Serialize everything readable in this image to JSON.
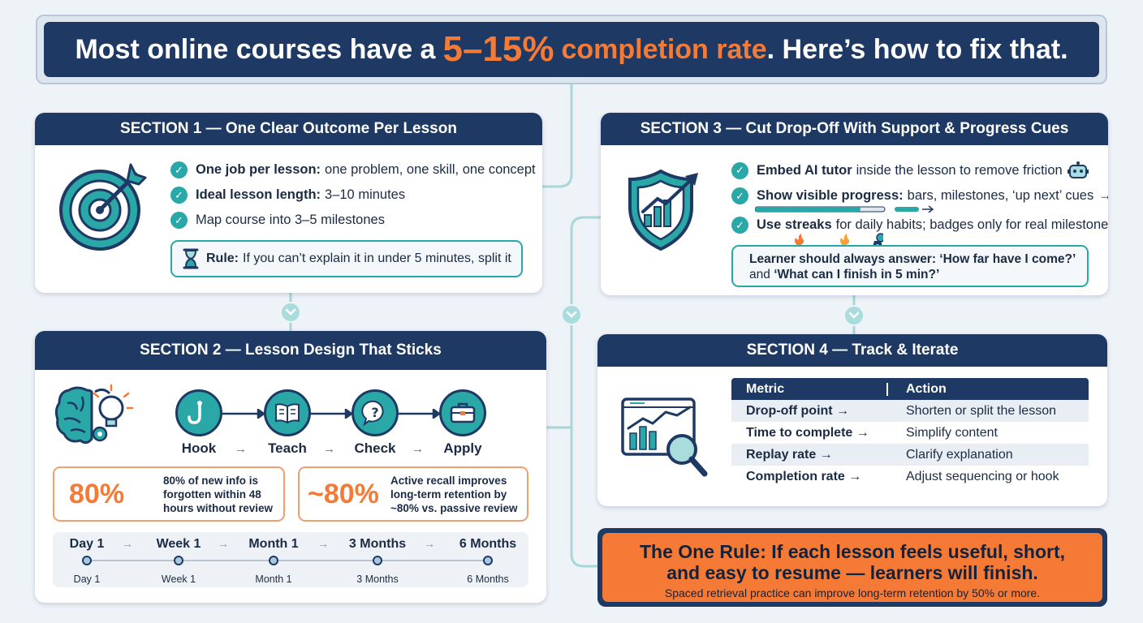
{
  "header": {
    "prefix": "Most online courses have a",
    "highlight_number": "5–15%",
    "highlight_text": "completion rate",
    "suffix": ". Here’s how to fix that."
  },
  "section1": {
    "title": "SECTION 1 — One Clear Outcome Per Lesson",
    "items": [
      {
        "bold": "One job per lesson:",
        "text": "one problem, one skill, one concept"
      },
      {
        "bold": "Ideal lesson length:",
        "text": "3–10 minutes"
      },
      {
        "bold": "",
        "text": "Map course into 3–5 milestones"
      }
    ],
    "rule_bold": "Rule:",
    "rule_text": "If you can’t explain it in under 5 minutes, split it"
  },
  "section2": {
    "title": "SECTION 2 — Lesson Design That Sticks",
    "flow": [
      "Hook",
      "Teach",
      "Check",
      "Apply"
    ],
    "stats": [
      {
        "value": "80%",
        "lines": [
          "80% of new info is",
          "forgotten within 48",
          "hours without review"
        ]
      },
      {
        "value": "~80%",
        "lines": [
          "Active recall improves",
          "long-term retention by",
          "~80% vs. passive review"
        ]
      }
    ],
    "timeline": [
      "Day 1",
      "Week 1",
      "Month 1",
      "3 Months",
      "6 Months"
    ]
  },
  "section3": {
    "title": "SECTION 3 — Cut Drop-Off With Support & Progress Cues",
    "items": [
      {
        "bold": "Embed AI tutor",
        "text": "inside the lesson to remove friction"
      },
      {
        "bold": "Show visible progress:",
        "text": "bars, milestones, ‘up next’ cues"
      },
      {
        "bold": "Use streaks",
        "text": "for daily habits; badges only for real milestones"
      }
    ],
    "callout_line1": "Learner should always answer: ‘How far have I come?’",
    "callout_and": "and",
    "callout_line2": "‘What can I finish in 5 min?’"
  },
  "section4": {
    "title": "SECTION 4 — Track & Iterate",
    "col_metric": "Metric",
    "col_action": "Action",
    "rows": [
      {
        "metric": "Drop-off point →",
        "action": "Shorten or split the lesson"
      },
      {
        "metric": "Time to complete →",
        "action": "Simplify content"
      },
      {
        "metric": "Replay rate →",
        "action": "Clarify explanation"
      },
      {
        "metric": "Completion rate →",
        "action": "Adjust sequencing or hook"
      }
    ]
  },
  "one_rule": {
    "line1": "The One Rule: If each lesson feels useful, short,",
    "line2": "and easy to resume — learners will finish.",
    "sub": "Spaced retrieval practice can improve long-term retention by 50% or more."
  },
  "colors": {
    "navy": "#1e3a64",
    "teal": "#2aa7a7",
    "orange": "#f47a36"
  }
}
